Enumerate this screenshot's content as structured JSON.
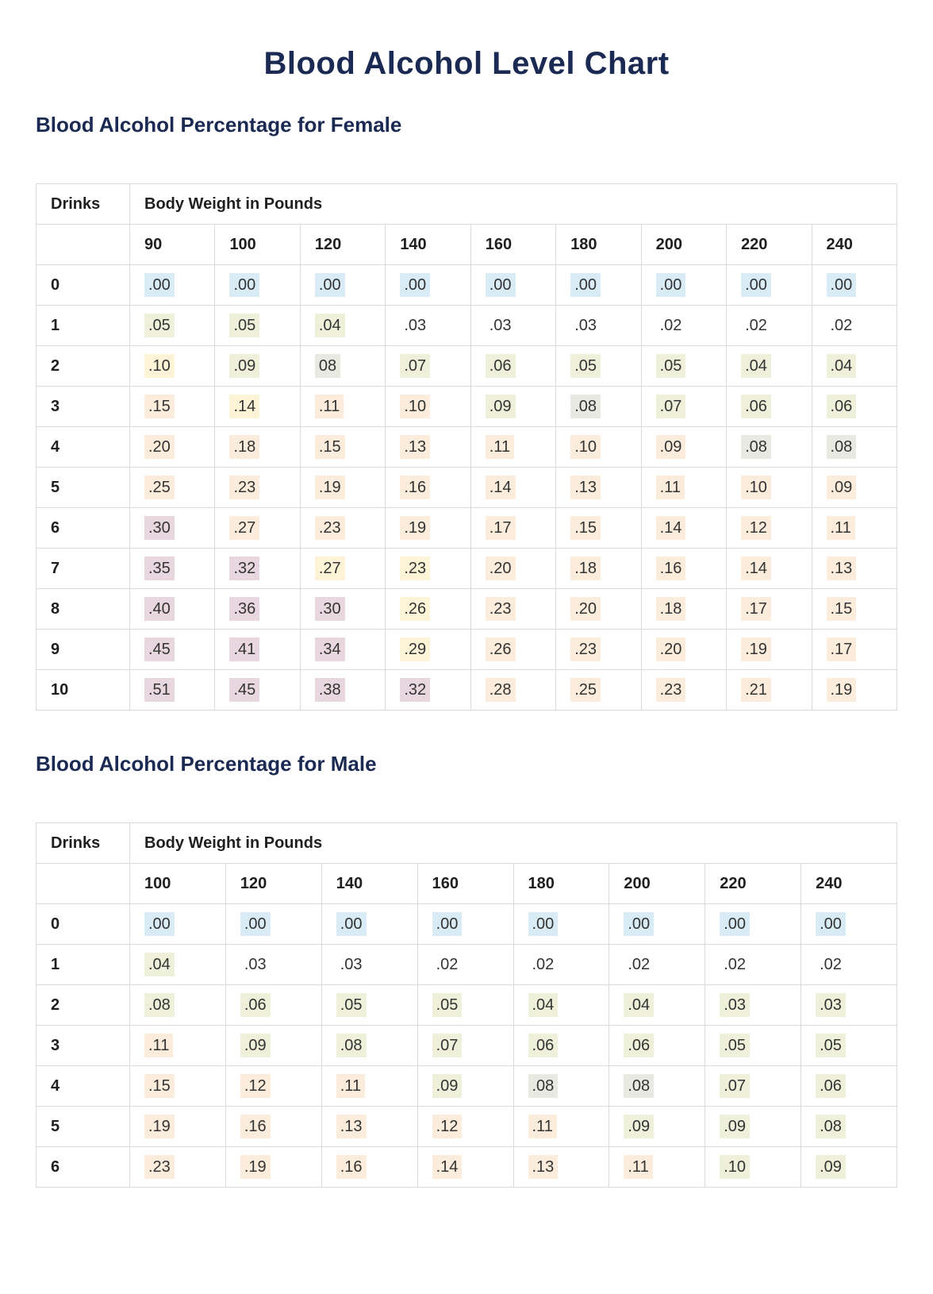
{
  "page": {
    "title": "Blood Alcohol Level Chart"
  },
  "colors": {
    "heading": "#1b2a52",
    "table_border": "#dadada",
    "highlights": {
      "blue": "#d9ecf6",
      "green": "#eef0d9",
      "gray": "#e8e9e1",
      "cream": "#fdf4d8",
      "peach": "#fbecdb",
      "pink": "#e9d7df",
      "none": ""
    }
  },
  "sections": [
    {
      "id": "female",
      "heading": "Blood Alcohol Percentage for Female",
      "table": {
        "corner_header": "Drinks",
        "group_header": "Body Weight in Pounds",
        "weight_columns": [
          "90",
          "100",
          "120",
          "140",
          "160",
          "180",
          "200",
          "220",
          "240"
        ],
        "rows": [
          {
            "drinks": "0",
            "cells": [
              {
                "v": ".00",
                "h": "blue"
              },
              {
                "v": ".00",
                "h": "blue"
              },
              {
                "v": ".00",
                "h": "blue"
              },
              {
                "v": ".00",
                "h": "blue"
              },
              {
                "v": ".00",
                "h": "blue"
              },
              {
                "v": ".00",
                "h": "blue"
              },
              {
                "v": ".00",
                "h": "blue"
              },
              {
                "v": ".00",
                "h": "blue"
              },
              {
                "v": ".00",
                "h": "blue"
              }
            ]
          },
          {
            "drinks": "1",
            "cells": [
              {
                "v": ".05",
                "h": "green"
              },
              {
                "v": ".05",
                "h": "green"
              },
              {
                "v": ".04",
                "h": "green"
              },
              {
                "v": ".03",
                "h": "none"
              },
              {
                "v": ".03",
                "h": "none"
              },
              {
                "v": ".03",
                "h": "none"
              },
              {
                "v": ".02",
                "h": "none"
              },
              {
                "v": ".02",
                "h": "none"
              },
              {
                "v": ".02",
                "h": "none"
              }
            ]
          },
          {
            "drinks": "2",
            "cells": [
              {
                "v": ".10",
                "h": "cream"
              },
              {
                "v": ".09",
                "h": "green"
              },
              {
                "v": "08",
                "h": "gray"
              },
              {
                "v": ".07",
                "h": "green"
              },
              {
                "v": ".06",
                "h": "green"
              },
              {
                "v": ".05",
                "h": "green"
              },
              {
                "v": ".05",
                "h": "green"
              },
              {
                "v": ".04",
                "h": "green"
              },
              {
                "v": ".04",
                "h": "green"
              }
            ]
          },
          {
            "drinks": "3",
            "cells": [
              {
                "v": ".15",
                "h": "peach"
              },
              {
                "v": ".14",
                "h": "cream"
              },
              {
                "v": ".11",
                "h": "peach"
              },
              {
                "v": ".10",
                "h": "peach"
              },
              {
                "v": ".09",
                "h": "green"
              },
              {
                "v": ".08",
                "h": "gray"
              },
              {
                "v": ".07",
                "h": "green"
              },
              {
                "v": ".06",
                "h": "green"
              },
              {
                "v": ".06",
                "h": "green"
              }
            ]
          },
          {
            "drinks": "4",
            "cells": [
              {
                "v": ".20",
                "h": "peach"
              },
              {
                "v": ".18",
                "h": "peach"
              },
              {
                "v": ".15",
                "h": "peach"
              },
              {
                "v": ".13",
                "h": "peach"
              },
              {
                "v": ".11",
                "h": "peach"
              },
              {
                "v": ".10",
                "h": "peach"
              },
              {
                "v": ".09",
                "h": "peach"
              },
              {
                "v": ".08",
                "h": "gray"
              },
              {
                "v": ".08",
                "h": "gray"
              }
            ]
          },
          {
            "drinks": "5",
            "cells": [
              {
                "v": ".25",
                "h": "peach"
              },
              {
                "v": ".23",
                "h": "peach"
              },
              {
                "v": ".19",
                "h": "peach"
              },
              {
                "v": ".16",
                "h": "peach"
              },
              {
                "v": ".14",
                "h": "peach"
              },
              {
                "v": ".13",
                "h": "peach"
              },
              {
                "v": ".11",
                "h": "peach"
              },
              {
                "v": ".10",
                "h": "peach"
              },
              {
                "v": ".09",
                "h": "peach"
              }
            ]
          },
          {
            "drinks": "6",
            "cells": [
              {
                "v": ".30",
                "h": "pink"
              },
              {
                "v": ".27",
                "h": "peach"
              },
              {
                "v": ".23",
                "h": "peach"
              },
              {
                "v": ".19",
                "h": "peach"
              },
              {
                "v": ".17",
                "h": "peach"
              },
              {
                "v": ".15",
                "h": "peach"
              },
              {
                "v": ".14",
                "h": "peach"
              },
              {
                "v": ".12",
                "h": "peach"
              },
              {
                "v": ".11",
                "h": "peach"
              }
            ]
          },
          {
            "drinks": "7",
            "cells": [
              {
                "v": ".35",
                "h": "pink"
              },
              {
                "v": ".32",
                "h": "pink"
              },
              {
                "v": ".27",
                "h": "cream"
              },
              {
                "v": ".23",
                "h": "cream"
              },
              {
                "v": ".20",
                "h": "peach"
              },
              {
                "v": ".18",
                "h": "peach"
              },
              {
                "v": ".16",
                "h": "peach"
              },
              {
                "v": ".14",
                "h": "peach"
              },
              {
                "v": ".13",
                "h": "peach"
              }
            ]
          },
          {
            "drinks": "8",
            "cells": [
              {
                "v": ".40",
                "h": "pink"
              },
              {
                "v": ".36",
                "h": "pink"
              },
              {
                "v": ".30",
                "h": "pink"
              },
              {
                "v": ".26",
                "h": "cream"
              },
              {
                "v": ".23",
                "h": "peach"
              },
              {
                "v": ".20",
                "h": "peach"
              },
              {
                "v": ".18",
                "h": "peach"
              },
              {
                "v": ".17",
                "h": "peach"
              },
              {
                "v": ".15",
                "h": "peach"
              }
            ]
          },
          {
            "drinks": "9",
            "cells": [
              {
                "v": ".45",
                "h": "pink"
              },
              {
                "v": ".41",
                "h": "pink"
              },
              {
                "v": ".34",
                "h": "pink"
              },
              {
                "v": ".29",
                "h": "cream"
              },
              {
                "v": ".26",
                "h": "peach"
              },
              {
                "v": ".23",
                "h": "peach"
              },
              {
                "v": ".20",
                "h": "peach"
              },
              {
                "v": ".19",
                "h": "peach"
              },
              {
                "v": ".17",
                "h": "peach"
              }
            ]
          },
          {
            "drinks": "10",
            "cells": [
              {
                "v": ".51",
                "h": "pink"
              },
              {
                "v": ".45",
                "h": "pink"
              },
              {
                "v": ".38",
                "h": "pink"
              },
              {
                "v": ".32",
                "h": "pink"
              },
              {
                "v": ".28",
                "h": "peach"
              },
              {
                "v": ".25",
                "h": "peach"
              },
              {
                "v": ".23",
                "h": "peach"
              },
              {
                "v": ".21",
                "h": "peach"
              },
              {
                "v": ".19",
                "h": "peach"
              }
            ]
          }
        ]
      }
    },
    {
      "id": "male",
      "heading": "Blood Alcohol Percentage for Male",
      "table": {
        "corner_header": "Drinks",
        "group_header": "Body Weight in Pounds",
        "weight_columns": [
          "100",
          "120",
          "140",
          "160",
          "180",
          "200",
          "220",
          "240"
        ],
        "rows": [
          {
            "drinks": "0",
            "cells": [
              {
                "v": ".00",
                "h": "blue"
              },
              {
                "v": ".00",
                "h": "blue"
              },
              {
                "v": ".00",
                "h": "blue"
              },
              {
                "v": ".00",
                "h": "blue"
              },
              {
                "v": ".00",
                "h": "blue"
              },
              {
                "v": ".00",
                "h": "blue"
              },
              {
                "v": ".00",
                "h": "blue"
              },
              {
                "v": ".00",
                "h": "blue"
              }
            ]
          },
          {
            "drinks": "1",
            "cells": [
              {
                "v": ".04",
                "h": "green"
              },
              {
                "v": ".03",
                "h": "none"
              },
              {
                "v": ".03",
                "h": "none"
              },
              {
                "v": ".02",
                "h": "none"
              },
              {
                "v": ".02",
                "h": "none"
              },
              {
                "v": ".02",
                "h": "none"
              },
              {
                "v": ".02",
                "h": "none"
              },
              {
                "v": ".02",
                "h": "none"
              }
            ]
          },
          {
            "drinks": "2",
            "cells": [
              {
                "v": ".08",
                "h": "green"
              },
              {
                "v": ".06",
                "h": "green"
              },
              {
                "v": ".05",
                "h": "green"
              },
              {
                "v": ".05",
                "h": "green"
              },
              {
                "v": ".04",
                "h": "green"
              },
              {
                "v": ".04",
                "h": "green"
              },
              {
                "v": ".03",
                "h": "green"
              },
              {
                "v": ".03",
                "h": "green"
              }
            ]
          },
          {
            "drinks": "3",
            "cells": [
              {
                "v": ".11",
                "h": "peach"
              },
              {
                "v": ".09",
                "h": "green"
              },
              {
                "v": ".08",
                "h": "green"
              },
              {
                "v": ".07",
                "h": "green"
              },
              {
                "v": ".06",
                "h": "green"
              },
              {
                "v": ".06",
                "h": "green"
              },
              {
                "v": ".05",
                "h": "green"
              },
              {
                "v": ".05",
                "h": "green"
              }
            ]
          },
          {
            "drinks": "4",
            "cells": [
              {
                "v": ".15",
                "h": "peach"
              },
              {
                "v": ".12",
                "h": "peach"
              },
              {
                "v": ".11",
                "h": "peach"
              },
              {
                "v": ".09",
                "h": "green"
              },
              {
                "v": ".08",
                "h": "gray"
              },
              {
                "v": ".08",
                "h": "gray"
              },
              {
                "v": ".07",
                "h": "green"
              },
              {
                "v": ".06",
                "h": "green"
              }
            ]
          },
          {
            "drinks": "5",
            "cells": [
              {
                "v": ".19",
                "h": "peach"
              },
              {
                "v": ".16",
                "h": "peach"
              },
              {
                "v": ".13",
                "h": "peach"
              },
              {
                "v": ".12",
                "h": "peach"
              },
              {
                "v": ".11",
                "h": "peach"
              },
              {
                "v": ".09",
                "h": "green"
              },
              {
                "v": ".09",
                "h": "green"
              },
              {
                "v": ".08",
                "h": "green"
              }
            ]
          },
          {
            "drinks": "6",
            "cells": [
              {
                "v": ".23",
                "h": "peach"
              },
              {
                "v": ".19",
                "h": "peach"
              },
              {
                "v": ".16",
                "h": "peach"
              },
              {
                "v": ".14",
                "h": "peach"
              },
              {
                "v": ".13",
                "h": "peach"
              },
              {
                "v": ".11",
                "h": "peach"
              },
              {
                "v": ".10",
                "h": "green"
              },
              {
                "v": ".09",
                "h": "green"
              }
            ]
          }
        ]
      }
    }
  ]
}
